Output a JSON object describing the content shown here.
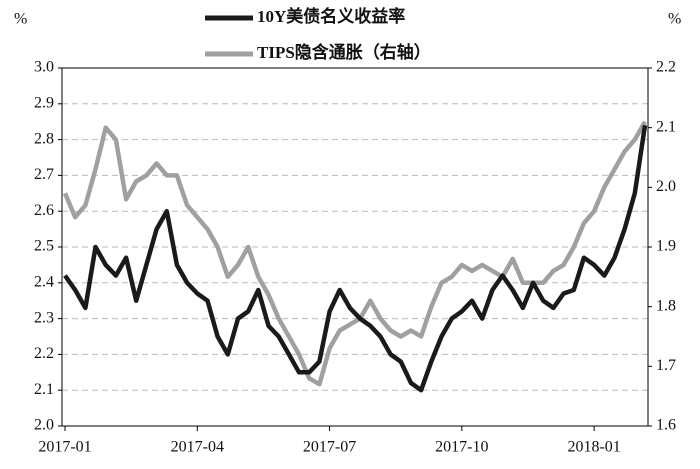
{
  "chart_data": {
    "type": "line",
    "y_label": "%",
    "y2_label": "%",
    "categories": [
      "2017-01",
      null,
      null,
      null,
      null,
      null,
      null,
      null,
      null,
      null,
      null,
      null,
      null,
      "2017-04",
      null,
      null,
      null,
      null,
      null,
      null,
      null,
      null,
      null,
      null,
      null,
      null,
      "2017-07",
      null,
      null,
      null,
      null,
      null,
      null,
      null,
      null,
      null,
      null,
      null,
      null,
      "2017-10",
      null,
      null,
      null,
      null,
      null,
      null,
      null,
      null,
      null,
      null,
      null,
      null,
      "2018-01",
      null,
      null,
      null,
      null,
      null
    ],
    "series": [
      {
        "name": "10Y美债名义收益率",
        "color": "#1a1a1a",
        "values": [
          2.42,
          2.38,
          2.33,
          2.5,
          2.45,
          2.42,
          2.47,
          2.35,
          2.45,
          2.55,
          2.6,
          2.45,
          2.4,
          2.37,
          2.35,
          2.25,
          2.2,
          2.3,
          2.32,
          2.38,
          2.28,
          2.25,
          2.2,
          2.15,
          2.15,
          2.18,
          2.32,
          2.38,
          2.33,
          2.3,
          2.28,
          2.25,
          2.2,
          2.18,
          2.12,
          2.1,
          2.18,
          2.25,
          2.3,
          2.32,
          2.35,
          2.3,
          2.38,
          2.42,
          2.38,
          2.33,
          2.4,
          2.35,
          2.33,
          2.37,
          2.38,
          2.47,
          2.45,
          2.42,
          2.47,
          2.55,
          2.65,
          2.84
        ]
      },
      {
        "name": "TIPS隐含通胀（右轴）",
        "color": "#a0a0a0",
        "axis": "y2",
        "values": [
          1.99,
          1.95,
          1.97,
          2.03,
          2.1,
          2.08,
          1.98,
          2.01,
          2.02,
          2.04,
          2.02,
          2.02,
          1.97,
          1.95,
          1.93,
          1.9,
          1.85,
          1.87,
          1.9,
          1.85,
          1.82,
          1.78,
          1.75,
          1.72,
          1.68,
          1.67,
          1.73,
          1.76,
          1.77,
          1.78,
          1.81,
          1.78,
          1.76,
          1.75,
          1.76,
          1.75,
          1.8,
          1.84,
          1.85,
          1.87,
          1.86,
          1.87,
          1.86,
          1.85,
          1.88,
          1.84,
          1.84,
          1.84,
          1.86,
          1.87,
          1.9,
          1.94,
          1.96,
          2.0,
          2.03,
          2.06,
          2.08,
          2.11
        ]
      }
    ],
    "ylim": [
      2.0,
      3.0
    ],
    "yticks": [
      {
        "value": 2.0,
        "label": "2.0"
      },
      2.1,
      2.2,
      2.3,
      2.4,
      2.5,
      2.6,
      2.7,
      2.8,
      2.9,
      {
        "value": 3.0,
        "label": "3.0"
      }
    ],
    "y2lim": [
      1.6,
      2.2
    ],
    "y2ticks": [
      1.6,
      1.7,
      1.8,
      1.9,
      {
        "value": 2.0,
        "label": "2.0"
      },
      2.1,
      2.2
    ],
    "grid": true,
    "legend": "top"
  }
}
